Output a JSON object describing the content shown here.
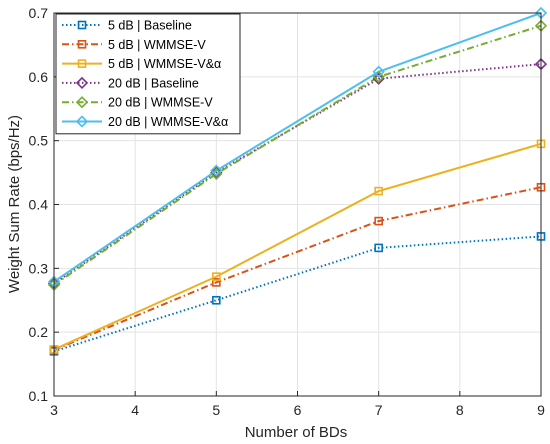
{
  "chart_data": {
    "type": "line",
    "xlabel": "Number of BDs",
    "ylabel": "Weight Sum Rate (bps/Hz)",
    "xlim": [
      3,
      9
    ],
    "ylim": [
      0.1,
      0.7
    ],
    "xticks": [
      "3",
      "4",
      "5",
      "6",
      "7",
      "8",
      "9"
    ],
    "yticks": [
      "0.1",
      "0.2",
      "0.3",
      "0.4",
      "0.5",
      "0.6",
      "0.7"
    ],
    "x": [
      3,
      5,
      7,
      9
    ],
    "grid": true,
    "legend_position": "top-left",
    "series": [
      {
        "name": "5 dB | Baseline",
        "values": [
          0.17,
          0.25,
          0.332,
          0.35
        ],
        "color": "#0072BD",
        "line": "dotted",
        "marker": "square"
      },
      {
        "name": "5 dB | WMMSE-V",
        "values": [
          0.172,
          0.278,
          0.374,
          0.427
        ],
        "color": "#D95319",
        "line": "dashdot",
        "marker": "square"
      },
      {
        "name": "5 dB | WMMSE-V&α",
        "values": [
          0.173,
          0.287,
          0.421,
          0.495
        ],
        "color": "#EDB120",
        "line": "solid",
        "marker": "square"
      },
      {
        "name": "20 dB | Baseline",
        "values": [
          0.276,
          0.45,
          0.597,
          0.62
        ],
        "color": "#7E2F8E",
        "line": "dotted",
        "marker": "diamond"
      },
      {
        "name": "20 dB | WMMSE-V",
        "values": [
          0.274,
          0.448,
          0.6,
          0.68
        ],
        "color": "#77AC30",
        "line": "dashdot",
        "marker": "diamond"
      },
      {
        "name": "20 dB | WMMSE-V&α",
        "values": [
          0.279,
          0.453,
          0.608,
          0.7
        ],
        "color": "#4DBEEE",
        "line": "solid",
        "marker": "diamond"
      }
    ]
  }
}
